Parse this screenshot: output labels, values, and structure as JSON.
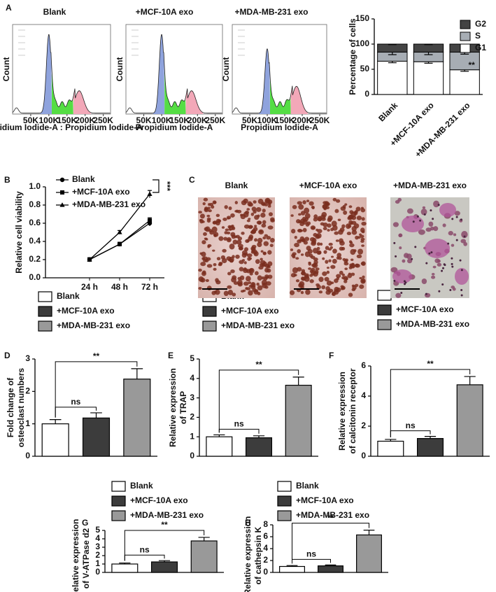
{
  "chart_data": [
    {
      "type": "flow",
      "panel": "A",
      "title": "Blank",
      "xlabel": "Propidium Iodide-A : Propidium Iodide-A",
      "ylabel": "Count",
      "xlim": [
        0,
        270000
      ],
      "xticks": [
        {
          "value": 50000,
          "label": "50K"
        },
        {
          "value": 100000,
          "label": "100K"
        },
        {
          "value": 150000,
          "label": "150K"
        },
        {
          "value": 200000,
          "label": "200K"
        },
        {
          "value": 250000,
          "label": "250K"
        }
      ]
    },
    {
      "type": "flow",
      "title": "+MCF-10A exo",
      "xlabel": "Propidium Iodide-A",
      "ylabel": "Count",
      "xlim": [
        0,
        270000
      ],
      "xticks": [
        {
          "value": 50000,
          "label": "50K"
        },
        {
          "value": 100000,
          "label": "100K"
        },
        {
          "value": 150000,
          "label": "150K"
        },
        {
          "value": 200000,
          "label": "200K"
        },
        {
          "value": 250000,
          "label": "250K"
        }
      ]
    },
    {
      "type": "flow",
      "title": "+MDA-MB-231 exo",
      "xlabel": "Propidium Iodide-A",
      "ylabel": "Count",
      "xlim": [
        0,
        270000
      ],
      "xticks": [
        {
          "value": 50000,
          "label": "50K"
        },
        {
          "value": 100000,
          "label": "100K"
        },
        {
          "value": 150000,
          "label": "150K"
        },
        {
          "value": 200000,
          "label": "200K"
        },
        {
          "value": 250000,
          "label": "250K"
        }
      ]
    },
    {
      "type": "stacked_bar",
      "ylabel": "Percentage of cells",
      "categories": [
        "Blank",
        "+MCF-10A exo",
        "+MDA-MB-231 exo"
      ],
      "series": [
        {
          "name": "G1",
          "color": "#ffffff",
          "values": [
            66,
            65,
            49
          ],
          "errors": [
            3,
            3,
            3
          ]
        },
        {
          "name": "S",
          "color": "#a7adb4",
          "values": [
            18,
            19,
            35
          ],
          "errors": [
            5,
            5,
            4
          ]
        },
        {
          "name": "G2",
          "color": "#444444",
          "values": [
            16,
            16,
            16
          ],
          "errors": [
            1,
            1,
            1
          ]
        }
      ],
      "annotation": "**",
      "ylim": [
        0,
        150
      ],
      "yticks": [
        0,
        50,
        100,
        150
      ]
    },
    {
      "type": "line",
      "panel": "B",
      "ylabel": "Relative cell viability",
      "categories": [
        "24 h",
        "48 h",
        "72 h"
      ],
      "series": [
        {
          "name": "Blank",
          "marker": "circle",
          "color": "#000000",
          "values": [
            0.2,
            0.37,
            0.6
          ],
          "errors": [
            0.02,
            0.02,
            0.03
          ]
        },
        {
          "name": "+MCF-10A exo",
          "marker": "square",
          "color": "#000000",
          "values": [
            0.2,
            0.37,
            0.63
          ],
          "errors": [
            0.02,
            0.02,
            0.03
          ]
        },
        {
          "name": "+MDA-MB-231 exo",
          "marker": "triangle",
          "color": "#000000",
          "values": [
            0.2,
            0.5,
            0.92
          ],
          "errors": [
            0.02,
            0.02,
            0.04
          ]
        }
      ],
      "annotation": "***",
      "ylim": [
        0,
        1
      ],
      "yticks": [
        {
          "value": 0,
          "label": "0.0"
        },
        0.2,
        0.4,
        0.6,
        0.8,
        {
          "value": 1,
          "label": "1.0"
        }
      ]
    },
    {
      "type": "bar",
      "panel": "D",
      "ylabel": [
        "Fold change of",
        "osteoclast numbers"
      ],
      "categories": [
        "Blank",
        "+MCF-10A exo",
        "+MDA-MB-231 exo"
      ],
      "colors": [
        "#ffffff",
        "#3c3c3c",
        "#999999"
      ],
      "values": [
        1.0,
        1.18,
        2.38
      ],
      "errors": [
        0.13,
        0.16,
        0.32
      ],
      "annotations": [
        "ns",
        "**"
      ],
      "ylim": [
        0,
        3
      ],
      "yticks": [
        0,
        1,
        2,
        3
      ]
    },
    {
      "type": "bar",
      "panel": "E",
      "ylabel": [
        "Relative expression",
        "of TRAP"
      ],
      "categories": [
        "Blank",
        "+MCF-10A exo",
        "+MDA-MB-231 exo"
      ],
      "colors": [
        "#ffffff",
        "#3c3c3c",
        "#999999"
      ],
      "values": [
        1.0,
        0.95,
        3.65
      ],
      "errors": [
        0.1,
        0.1,
        0.42
      ],
      "annotations": [
        "ns",
        "**"
      ],
      "ylim": [
        0,
        5
      ],
      "yticks": [
        0,
        1,
        2,
        3,
        4,
        5
      ]
    },
    {
      "type": "bar",
      "panel": "F",
      "ylabel": [
        "Relative expression",
        "of calcitonin receptor"
      ],
      "categories": [
        "Blank",
        "+MCF-10A exo",
        "+MDA-MB-231 exo"
      ],
      "colors": [
        "#ffffff",
        "#3c3c3c",
        "#999999"
      ],
      "values": [
        1.0,
        1.18,
        4.75
      ],
      "errors": [
        0.12,
        0.14,
        0.55
      ],
      "annotations": [
        "ns",
        "**"
      ],
      "ylim": [
        0,
        6
      ],
      "yticks": [
        0,
        2,
        4,
        6
      ]
    },
    {
      "type": "bar",
      "panel": "G",
      "ylabel": [
        "Relative expression",
        "of V-ATPase d2"
      ],
      "categories": [
        "Blank",
        "+MCF-10A exo",
        "+MDA-MB-231 exo"
      ],
      "colors": [
        "#ffffff",
        "#3c3c3c",
        "#999999"
      ],
      "values": [
        1.0,
        1.25,
        3.75
      ],
      "errors": [
        0.12,
        0.15,
        0.42
      ],
      "annotations": [
        "ns",
        "**"
      ],
      "ylim": [
        0,
        5
      ],
      "yticks": [
        0,
        1,
        2,
        3,
        4,
        5
      ]
    },
    {
      "type": "bar",
      "panel": "H",
      "ylabel": [
        "Relative expression",
        "of cathepsin K"
      ],
      "categories": [
        "Blank",
        "+MCF-10A exo",
        "+MDA-MB-231 exo"
      ],
      "colors": [
        "#ffffff",
        "#3c3c3c",
        "#999999"
      ],
      "values": [
        1.0,
        1.1,
        6.3
      ],
      "errors": [
        0.15,
        0.15,
        0.8
      ],
      "annotations": [
        "ns",
        "**"
      ],
      "ylim": [
        0,
        8
      ],
      "yticks": [
        0,
        2,
        4,
        6,
        8
      ]
    }
  ],
  "micrographs": {
    "panel": "C",
    "titles": [
      "Blank",
      "+MCF-10A exo",
      "+MDA-MB-231 exo"
    ]
  }
}
